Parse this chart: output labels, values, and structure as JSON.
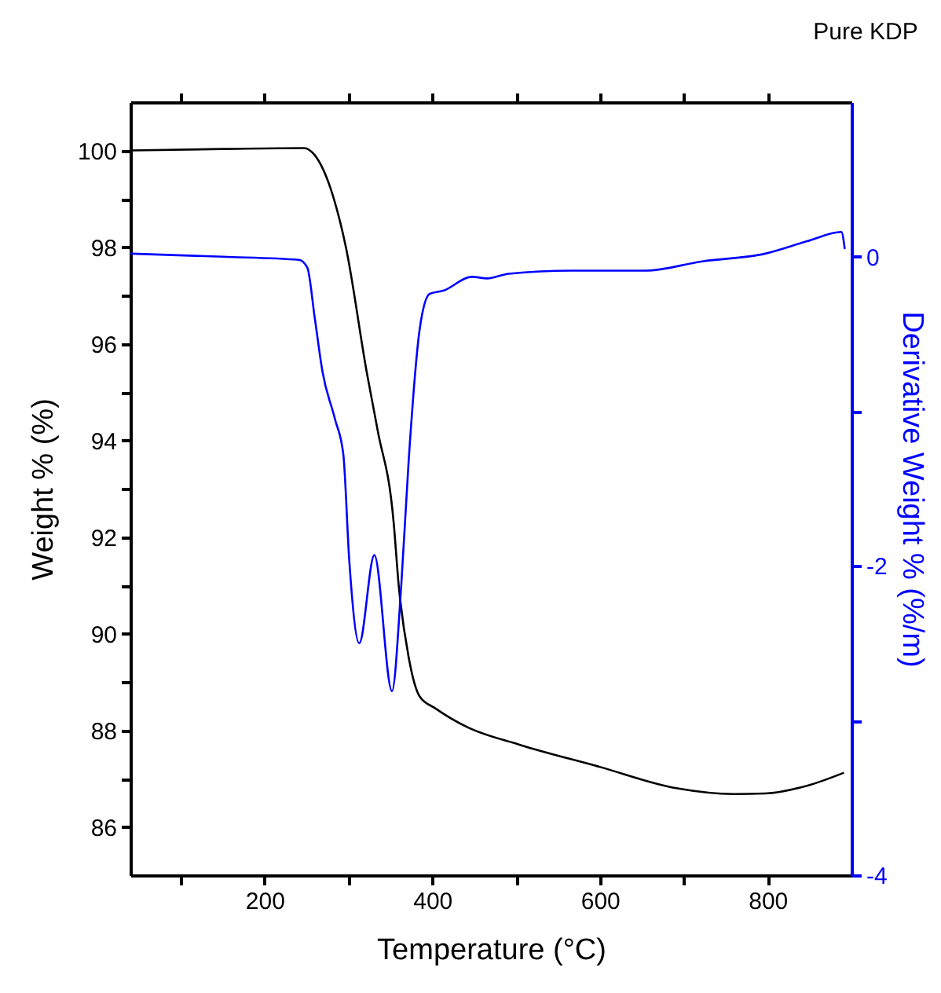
{
  "chart_data": {
    "type": "line",
    "title": "Pure KDP",
    "xlabel": "Temperature (°C)",
    "ylabel": "Weight % (%)",
    "y2label": "Derivative Weight % (%/m)",
    "xlim": [
      40,
      900
    ],
    "xticks": [
      {
        "value": 100,
        "label": null
      },
      200,
      {
        "value": 300,
        "label": null
      },
      400,
      {
        "value": 500,
        "label": null
      },
      600,
      {
        "value": 700,
        "label": null
      },
      800
    ],
    "ylim": [
      85,
      101
    ],
    "yticks": [
      86,
      {
        "value": 87,
        "label": null
      },
      88,
      {
        "value": 89,
        "label": null
      },
      90,
      {
        "value": 91,
        "label": null
      },
      92,
      {
        "value": 93,
        "label": null
      },
      94,
      {
        "value": 95,
        "label": null
      },
      96,
      {
        "value": 97,
        "label": null
      },
      98,
      {
        "value": 99,
        "label": null
      },
      100
    ],
    "y2lim": [
      -4,
      1
    ],
    "y2ticks": [
      -4,
      {
        "value": -3,
        "label": null
      },
      -2,
      {
        "value": -1,
        "label": null
      },
      0
    ],
    "grid": false,
    "series": [
      {
        "color": "#000000",
        "x": [
          40,
          150,
          247,
          260,
          279,
          297,
          322,
          335,
          354,
          360,
          372,
          385,
          404,
          441,
          504,
          598,
          691,
          760,
          797,
          847,
          891
        ],
        "values": [
          100.0,
          100.03,
          100.05,
          99.9,
          99.2,
          98.0,
          95.4,
          94.2,
          92.3,
          91.0,
          89.5,
          88.7,
          88.45,
          88.07,
          87.7,
          87.25,
          86.8,
          86.68,
          86.69,
          86.85,
          87.12
        ]
      },
      {
        "color": "#0000ff",
        "axis": "y2",
        "x": [
          40,
          150,
          241,
          251,
          260,
          269,
          284,
          294,
          301,
          313,
          331,
          352,
          363,
          372,
          385,
          397,
          413,
          447,
          466,
          491,
          566,
          654,
          722,
          797,
          847,
          888,
          892
        ],
        "values": [
          0.02,
          0.0,
          -0.02,
          -0.07,
          -0.4,
          -0.74,
          -1.05,
          -1.28,
          -1.96,
          -2.5,
          -1.93,
          -2.81,
          -2.13,
          -1.31,
          -0.47,
          -0.24,
          -0.22,
          -0.13,
          -0.14,
          -0.11,
          -0.09,
          -0.09,
          -0.03,
          0.02,
          0.1,
          0.16,
          0.05
        ]
      }
    ]
  }
}
